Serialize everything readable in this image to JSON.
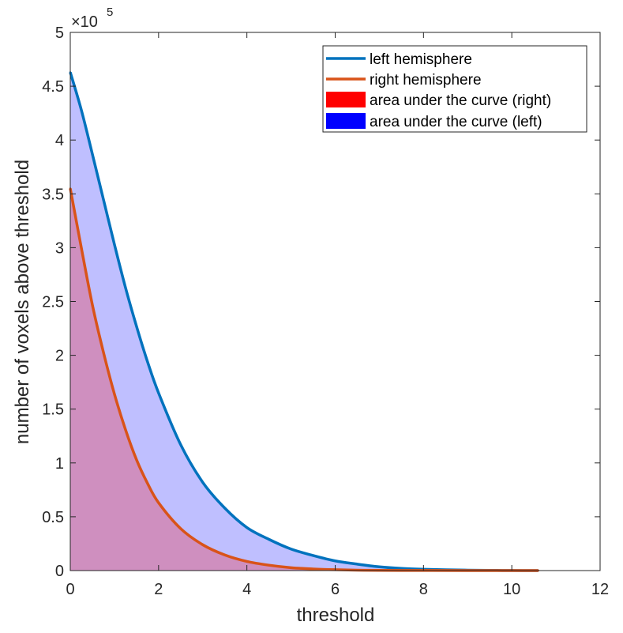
{
  "chart_data": {
    "type": "area",
    "title": "",
    "xlabel": "threshold",
    "ylabel": "number of voxels above threshold",
    "xlim": [
      0,
      12
    ],
    "ylim": [
      0,
      500000
    ],
    "x_ticks": [
      0,
      2,
      4,
      6,
      8,
      10,
      12
    ],
    "y_ticks": [
      0,
      50000,
      100000,
      150000,
      200000,
      250000,
      300000,
      350000,
      400000,
      450000,
      500000
    ],
    "x_tick_labels": [
      "0",
      "2",
      "4",
      "6",
      "8",
      "10",
      "12"
    ],
    "y_tick_labels": [
      "0",
      "0.5",
      "1",
      "1.5",
      "2",
      "2.5",
      "3",
      "3.5",
      "4",
      "4.5",
      "5"
    ],
    "y_exponent_base": "×10",
    "y_exponent_power": "5",
    "legend_location": "top-right",
    "legend": [
      {
        "label": "left hemisphere",
        "kind": "line",
        "color": "#0072BD"
      },
      {
        "label": "right hemisphere",
        "kind": "line",
        "color": "#D95319"
      },
      {
        "label": "area under the curve (right)",
        "kind": "patch",
        "color": "#FF0000"
      },
      {
        "label": "area under the curve (left)",
        "kind": "patch",
        "color": "#0000FF"
      }
    ],
    "series": [
      {
        "name": "left hemisphere",
        "color": "#0072BD",
        "fill_color": "#0000FF",
        "fill_alpha": 0.25,
        "x": [
          0,
          0.25,
          0.5,
          0.75,
          1,
          1.25,
          1.5,
          1.75,
          2,
          2.5,
          3,
          3.5,
          4,
          4.5,
          5,
          5.5,
          6,
          6.5,
          7,
          7.5,
          8,
          8.5,
          9,
          9.5,
          10,
          10.6
        ],
        "values": [
          463000,
          428000,
          387000,
          345000,
          303000,
          263000,
          227000,
          194000,
          165000,
          117000,
          82000,
          58000,
          40000,
          29000,
          20000,
          14000,
          9000,
          6000,
          3500,
          2000,
          1200,
          700,
          400,
          200,
          80,
          0
        ]
      },
      {
        "name": "right hemisphere",
        "color": "#D95319",
        "fill_color": "#FF0000",
        "fill_alpha": 0.25,
        "x": [
          0,
          0.25,
          0.5,
          0.75,
          1,
          1.25,
          1.5,
          1.75,
          2,
          2.5,
          3,
          3.5,
          4,
          4.5,
          5,
          5.5,
          6,
          6.5,
          7,
          8,
          9,
          10,
          10.6
        ],
        "values": [
          355000,
          300000,
          247000,
          203000,
          164000,
          131000,
          103000,
          81000,
          63000,
          39000,
          24000,
          14500,
          8500,
          5000,
          2700,
          1500,
          800,
          400,
          200,
          60,
          20,
          5,
          0
        ]
      }
    ]
  }
}
